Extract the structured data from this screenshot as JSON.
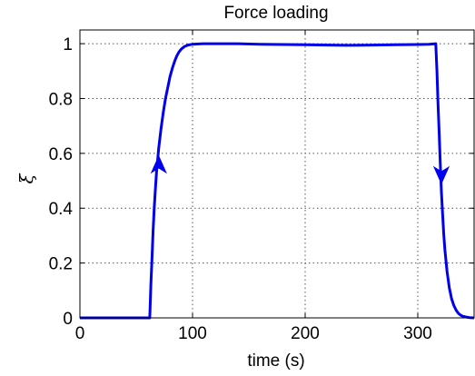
{
  "chart_data": {
    "type": "line",
    "title": "Force loading",
    "xlabel": "time (s)",
    "ylabel": "ξ",
    "xlim": [
      0,
      350
    ],
    "ylim": [
      0,
      1.05
    ],
    "xticks": [
      0,
      100,
      200,
      300
    ],
    "yticks": [
      0,
      0.2,
      0.4,
      0.6,
      0.8,
      1
    ],
    "ytick_labels": [
      "0",
      "0.2",
      "0.4",
      "0.6",
      "0.8",
      "1"
    ],
    "grid": true,
    "line_color": "#0000ee",
    "series": [
      {
        "x": [
          0,
          20,
          40,
          62,
          63,
          64,
          65,
          66,
          67,
          68,
          70,
          72,
          74,
          76,
          78,
          80,
          82,
          84,
          86,
          88,
          90,
          93,
          96,
          100,
          105,
          110,
          120,
          140,
          160,
          180,
          200,
          220,
          240,
          260,
          280,
          300,
          310,
          316,
          317,
          318,
          319,
          320,
          321,
          322,
          323,
          324,
          326,
          328,
          330,
          332,
          334,
          336,
          338,
          340,
          343,
          346,
          350
        ],
        "y": [
          0,
          0,
          0,
          0,
          0.12,
          0.22,
          0.32,
          0.4,
          0.47,
          0.53,
          0.62,
          0.69,
          0.75,
          0.8,
          0.84,
          0.88,
          0.91,
          0.935,
          0.955,
          0.97,
          0.98,
          0.99,
          0.995,
          0.998,
          0.999,
          1.0,
          1.0,
          1.0,
          0.998,
          0.997,
          0.996,
          0.995,
          0.994,
          0.995,
          0.996,
          0.997,
          0.998,
          1.0,
          0.9,
          0.78,
          0.67,
          0.56,
          0.46,
          0.38,
          0.31,
          0.25,
          0.17,
          0.11,
          0.07,
          0.045,
          0.028,
          0.017,
          0.01,
          0.006,
          0.003,
          0.001,
          0
        ]
      }
    ],
    "arrows": [
      {
        "x": 70,
        "y": 0.55,
        "direction": "up"
      },
      {
        "x": 321,
        "y": 0.53,
        "direction": "down"
      }
    ]
  }
}
